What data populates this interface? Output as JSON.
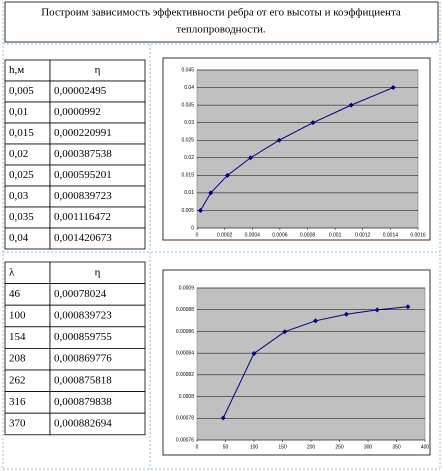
{
  "title": [
    "Построим зависимость эффективности ребра от его высоты и коэффициента",
    "теплопроводности."
  ],
  "table1": {
    "header": [
      "h,м",
      "η"
    ],
    "rows": [
      [
        "0,005",
        "0,00002495"
      ],
      [
        "0,01",
        "0,0000992"
      ],
      [
        "0,015",
        "0,000220991"
      ],
      [
        "0,02",
        "0,000387538"
      ],
      [
        "0,025",
        "0,000595201"
      ],
      [
        "0,03",
        "0,000839723"
      ],
      [
        "0,035",
        "0,001116472"
      ],
      [
        "0,04",
        "0,001420673"
      ]
    ]
  },
  "table2": {
    "header": [
      "λ",
      "η"
    ],
    "rows": [
      [
        "46",
        "0,00078024"
      ],
      [
        "100",
        "0,000839723"
      ],
      [
        "154",
        "0,000859755"
      ],
      [
        "208",
        "0,000869776"
      ],
      [
        "262",
        "0,000875818"
      ],
      [
        "316",
        "0,000879838"
      ],
      [
        "370",
        "0,000882694"
      ]
    ]
  },
  "chart_data": [
    {
      "type": "line",
      "color": "#000080",
      "plot_color": "#c0c0c0",
      "grid": true,
      "x": [
        2.495e-05,
        9.92e-05,
        0.000220991,
        0.000387538,
        0.000595201,
        0.000839723,
        0.001116472,
        0.001420673
      ],
      "values": [
        0.005,
        0.01,
        0.015,
        0.02,
        0.025,
        0.03,
        0.035,
        0.04
      ],
      "xlim": [
        0,
        0.0016
      ],
      "xticks": [
        0,
        0.0002,
        0.0004,
        0.0006,
        0.0008,
        0.001,
        0.0012,
        0.0014,
        0.0016
      ],
      "ylim": [
        0,
        0.045
      ],
      "yticks": [
        0,
        0.005,
        0.01,
        0.015,
        0.02,
        0.025,
        0.03,
        0.035,
        0.04,
        0.045
      ]
    },
    {
      "type": "line",
      "color": "#000080",
      "plot_color": "#c0c0c0",
      "grid": true,
      "x": [
        46,
        100,
        154,
        208,
        262,
        316,
        370
      ],
      "values": [
        0.00078024,
        0.000839723,
        0.000859755,
        0.000869776,
        0.000875818,
        0.000879838,
        0.000882694
      ],
      "xlim": [
        0,
        400
      ],
      "xticks": [
        0,
        50,
        100,
        150,
        200,
        250,
        300,
        350,
        400
      ],
      "ylim": [
        0.00076,
        0.0009
      ],
      "yticks": [
        0.00076,
        0.00078,
        0.0008,
        0.00082,
        0.00084,
        0.00086,
        0.00088,
        0.0009
      ]
    }
  ]
}
